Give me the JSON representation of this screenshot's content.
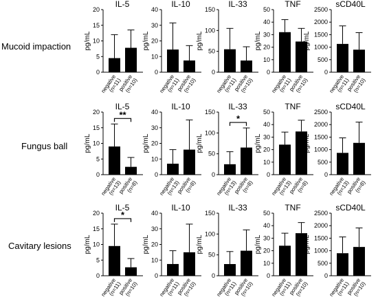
{
  "rows": [
    {
      "label": "Mucoid impaction"
    },
    {
      "label": "Fungus ball"
    },
    {
      "label": "Cavitary lesions"
    }
  ],
  "chart_data": [
    {
      "type": "bar",
      "row": 0,
      "title": "IL-5",
      "ylabel": "pg/mL",
      "ylim": [
        0,
        20
      ],
      "yticks": [
        0,
        5,
        10,
        15,
        20
      ],
      "categories": [
        {
          "name": "negative",
          "n": "(n=11)"
        },
        {
          "name": "positive",
          "n": "(n=10)"
        }
      ],
      "values": [
        4.5,
        7.8
      ],
      "errors": [
        7.5,
        5.7
      ],
      "significance": null
    },
    {
      "type": "bar",
      "row": 0,
      "title": "IL-10",
      "ylabel": "pg/mL",
      "ylim": [
        0,
        40
      ],
      "yticks": [
        0,
        10,
        20,
        30,
        40
      ],
      "categories": [
        {
          "name": "negative",
          "n": "(n=11)"
        },
        {
          "name": "positive",
          "n": "(n=10)"
        }
      ],
      "values": [
        14.5,
        7.5
      ],
      "errors": [
        17,
        9.5
      ],
      "significance": null
    },
    {
      "type": "bar",
      "row": 0,
      "title": "IL-33",
      "ylabel": "pg/mL",
      "ylim": [
        0,
        150
      ],
      "yticks": [
        0,
        50,
        100,
        150
      ],
      "categories": [
        {
          "name": "negative",
          "n": "(n=11)"
        },
        {
          "name": "positive",
          "n": "(n=10)"
        }
      ],
      "values": [
        55,
        28
      ],
      "errors": [
        50,
        33
      ],
      "significance": null
    },
    {
      "type": "bar",
      "row": 0,
      "title": "TNF",
      "ylabel": "pg/mL",
      "ylim": [
        0,
        50
      ],
      "yticks": [
        0,
        10,
        20,
        30,
        40,
        50
      ],
      "categories": [
        {
          "name": "negative",
          "n": "(n=11)"
        },
        {
          "name": "positive",
          "n": "(n=10)"
        }
      ],
      "values": [
        32,
        24.5
      ],
      "errors": [
        10,
        10.5
      ],
      "significance": null
    },
    {
      "type": "bar",
      "row": 0,
      "title": "sCD40L",
      "ylabel": "pg/mL",
      "ylim": [
        0,
        2500
      ],
      "yticks": [
        0,
        500,
        1000,
        1500,
        2000,
        2500
      ],
      "categories": [
        {
          "name": "negative",
          "n": "(n=11)"
        },
        {
          "name": "positive",
          "n": "(n=10)"
        }
      ],
      "values": [
        1130,
        900
      ],
      "errors": [
        720,
        680
      ],
      "significance": null
    },
    {
      "type": "bar",
      "row": 1,
      "title": "IL-5",
      "ylabel": "pg/mL",
      "ylim": [
        0,
        20
      ],
      "yticks": [
        0,
        5,
        10,
        15,
        20
      ],
      "categories": [
        {
          "name": "negative",
          "n": "(n=13)"
        },
        {
          "name": "positive",
          "n": "(n=8)"
        }
      ],
      "values": [
        9,
        2.5
      ],
      "errors": [
        7.2,
        3
      ],
      "significance": "**"
    },
    {
      "type": "bar",
      "row": 1,
      "title": "IL-10",
      "ylabel": "pg/mL",
      "ylim": [
        0,
        40
      ],
      "yticks": [
        0,
        10,
        20,
        30,
        40
      ],
      "categories": [
        {
          "name": "negative",
          "n": "(n=13)"
        },
        {
          "name": "positive",
          "n": "(n=8)"
        }
      ],
      "values": [
        7,
        16
      ],
      "errors": [
        9,
        19
      ],
      "significance": null
    },
    {
      "type": "bar",
      "row": 1,
      "title": "IL-33",
      "ylabel": "pg/mL",
      "ylim": [
        0,
        150
      ],
      "yticks": [
        0,
        50,
        100,
        150
      ],
      "categories": [
        {
          "name": "negative",
          "n": "(n=13)"
        },
        {
          "name": "positive",
          "n": "(n=8)"
        }
      ],
      "values": [
        25,
        65
      ],
      "errors": [
        30,
        47
      ],
      "significance": "*"
    },
    {
      "type": "bar",
      "row": 1,
      "title": "TNF",
      "ylabel": "pg/mL",
      "ylim": [
        0,
        50
      ],
      "yticks": [
        0,
        10,
        20,
        30,
        40,
        50
      ],
      "categories": [
        {
          "name": "negative",
          "n": "(n=13)"
        },
        {
          "name": "positive",
          "n": "(n=8)"
        }
      ],
      "values": [
        24,
        34.5
      ],
      "errors": [
        10,
        9
      ],
      "significance": null
    },
    {
      "type": "bar",
      "row": 1,
      "title": "sCD40L",
      "ylabel": "pg/mL",
      "ylim": [
        0,
        2500
      ],
      "yticks": [
        0,
        500,
        1000,
        1500,
        2000,
        2500
      ],
      "categories": [
        {
          "name": "negative",
          "n": "(n=13)"
        },
        {
          "name": "positive",
          "n": "(n=8)"
        }
      ],
      "values": [
        870,
        1270
      ],
      "errors": [
        600,
        830
      ],
      "significance": null
    },
    {
      "type": "bar",
      "row": 2,
      "title": "IL-5",
      "ylabel": "pg/mL",
      "ylim": [
        0,
        20
      ],
      "yticks": [
        0,
        5,
        10,
        15,
        20
      ],
      "categories": [
        {
          "name": "negative",
          "n": "(n=11)"
        },
        {
          "name": "positive",
          "n": "(n=10)"
        }
      ],
      "values": [
        9.5,
        2.7
      ],
      "errors": [
        7,
        2.8
      ],
      "significance": "*"
    },
    {
      "type": "bar",
      "row": 2,
      "title": "IL-10",
      "ylabel": "pg/mL",
      "ylim": [
        0,
        40
      ],
      "yticks": [
        0,
        10,
        20,
        30,
        40
      ],
      "categories": [
        {
          "name": "negative",
          "n": "(n=11)"
        },
        {
          "name": "positive",
          "n": "(n=10)"
        }
      ],
      "values": [
        7.5,
        15
      ],
      "errors": [
        8.5,
        18
      ],
      "significance": null
    },
    {
      "type": "bar",
      "row": 2,
      "title": "IL-33",
      "ylabel": "pg/mL",
      "ylim": [
        0,
        150
      ],
      "yticks": [
        0,
        50,
        100,
        150
      ],
      "categories": [
        {
          "name": "negative",
          "n": "(n=11)"
        },
        {
          "name": "positive",
          "n": "(n=10)"
        }
      ],
      "values": [
        28,
        60
      ],
      "errors": [
        30,
        50
      ],
      "significance": null
    },
    {
      "type": "bar",
      "row": 2,
      "title": "TNF",
      "ylabel": "pg/mL",
      "ylim": [
        0,
        50
      ],
      "yticks": [
        0,
        10,
        20,
        30,
        40,
        50
      ],
      "categories": [
        {
          "name": "negative",
          "n": "(n=11)"
        },
        {
          "name": "positive",
          "n": "(n=10)"
        }
      ],
      "values": [
        24,
        34
      ],
      "errors": [
        10,
        8.5
      ],
      "significance": null
    },
    {
      "type": "bar",
      "row": 2,
      "title": "sCD40L",
      "ylabel": "pg/mL",
      "ylim": [
        0,
        2500
      ],
      "yticks": [
        0,
        500,
        1000,
        1500,
        2000,
        2500
      ],
      "categories": [
        {
          "name": "negative",
          "n": "(n=11)"
        },
        {
          "name": "positive",
          "n": "(n=10)"
        }
      ],
      "values": [
        900,
        1150
      ],
      "errors": [
        650,
        760
      ],
      "significance": null
    }
  ]
}
